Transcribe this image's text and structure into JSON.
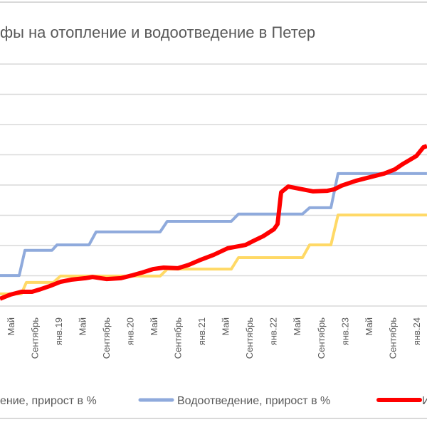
{
  "chart_data": {
    "type": "line",
    "title": "фы на отопление и водоотведение в Петер",
    "xlabel": "",
    "ylabel": "",
    "x_unit": "month index (0 = Jan 2018)",
    "xlim": [
      2.21,
      73.8
    ],
    "ylim": [
      0,
      8
    ],
    "y_gridlines": [
      0,
      1,
      2,
      3,
      4,
      5,
      6,
      7,
      8
    ],
    "grid": true,
    "legend_position": "bottom",
    "x_ticks": [
      {
        "m": 4,
        "label": "Май"
      },
      {
        "m": 8,
        "label": "Сентябрь"
      },
      {
        "m": 12,
        "label": "янв.19"
      },
      {
        "m": 16,
        "label": "Май"
      },
      {
        "m": 20,
        "label": "Сентябрь"
      },
      {
        "m": 24,
        "label": "янв.20"
      },
      {
        "m": 28,
        "label": "Май"
      },
      {
        "m": 32,
        "label": "Сентябрь"
      },
      {
        "m": 36,
        "label": "янв.21"
      },
      {
        "m": 40,
        "label": "Май"
      },
      {
        "m": 44,
        "label": "Сентябрь"
      },
      {
        "m": 48,
        "label": "янв.22"
      },
      {
        "m": 52,
        "label": "Май"
      },
      {
        "m": 56,
        "label": "Сентябрь"
      },
      {
        "m": 60,
        "label": "янв.23"
      },
      {
        "m": 64,
        "label": "Май"
      },
      {
        "m": 68,
        "label": "Сентябрь"
      },
      {
        "m": 72,
        "label": "янв.24"
      }
    ],
    "series": [
      {
        "name": "ение, прирост в %",
        "color": "#FFD966",
        "legend_visible": false,
        "points": [
          [
            2.21,
            0.4
          ],
          [
            5.79,
            0.4
          ],
          [
            6.63,
            0.78
          ],
          [
            11.16,
            0.78
          ],
          [
            12.35,
            0.99
          ],
          [
            29.06,
            0.99
          ],
          [
            30.25,
            1.22
          ],
          [
            40.99,
            1.22
          ],
          [
            42.19,
            1.6
          ],
          [
            52.93,
            1.6
          ],
          [
            54.12,
            2.02
          ],
          [
            57.7,
            2.02
          ],
          [
            58.89,
            3.01
          ],
          [
            73.8,
            3.01
          ]
        ]
      },
      {
        "name": "Водоотведение, прирост в %",
        "color": "#8FAADC",
        "legend_visible": true,
        "points": [
          [
            2.21,
            1.01
          ],
          [
            5.43,
            1.01
          ],
          [
            6.39,
            1.84
          ],
          [
            10.92,
            1.84
          ],
          [
            11.76,
            2.02
          ],
          [
            17.13,
            2.02
          ],
          [
            18.32,
            2.45
          ],
          [
            29.06,
            2.45
          ],
          [
            30.25,
            2.8
          ],
          [
            40.99,
            2.8
          ],
          [
            42.19,
            3.04
          ],
          [
            52.93,
            3.04
          ],
          [
            54.12,
            3.25
          ],
          [
            57.7,
            3.25
          ],
          [
            58.89,
            4.38
          ],
          [
            73.8,
            4.38
          ]
        ]
      },
      {
        "name": "И",
        "color": "#FF0000",
        "legend_visible": true,
        "points": [
          [
            2.21,
            0.24
          ],
          [
            4,
            0.38
          ],
          [
            5.79,
            0.47
          ],
          [
            7.58,
            0.47
          ],
          [
            8.77,
            0.54
          ],
          [
            10.56,
            0.66
          ],
          [
            12.35,
            0.8
          ],
          [
            14.14,
            0.87
          ],
          [
            16.53,
            0.92
          ],
          [
            17.72,
            0.96
          ],
          [
            20.11,
            0.89
          ],
          [
            22.5,
            0.92
          ],
          [
            24.29,
            1.01
          ],
          [
            26.08,
            1.11
          ],
          [
            27.87,
            1.22
          ],
          [
            29.66,
            1.27
          ],
          [
            32.04,
            1.25
          ],
          [
            33.83,
            1.36
          ],
          [
            35.62,
            1.51
          ],
          [
            38.01,
            1.69
          ],
          [
            40.4,
            1.91
          ],
          [
            43.38,
            2.02
          ],
          [
            44.57,
            2.14
          ],
          [
            46.36,
            2.31
          ],
          [
            48.15,
            2.54
          ],
          [
            48.75,
            2.71
          ],
          [
            49.35,
            3.76
          ],
          [
            50.54,
            3.95
          ],
          [
            52.33,
            3.88
          ],
          [
            54.72,
            3.79
          ],
          [
            57.1,
            3.81
          ],
          [
            58.3,
            3.86
          ],
          [
            59.49,
            3.98
          ],
          [
            61.88,
            4.14
          ],
          [
            64.26,
            4.26
          ],
          [
            66.65,
            4.38
          ],
          [
            68.44,
            4.52
          ],
          [
            69.63,
            4.68
          ],
          [
            70.82,
            4.82
          ],
          [
            72.02,
            4.96
          ],
          [
            73.21,
            5.25
          ],
          [
            73.8,
            5.29
          ]
        ]
      }
    ]
  }
}
